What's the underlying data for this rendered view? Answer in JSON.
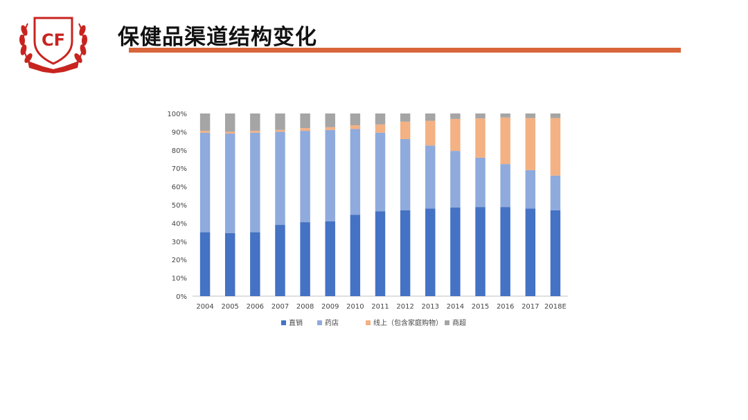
{
  "slide": {
    "title": "保健品渠道结构变化",
    "logo_text": "CF",
    "accent_color": "#d9653a",
    "logo_color": "#c8241f"
  },
  "chart_data": {
    "type": "bar",
    "stacked": true,
    "categories": [
      "2004",
      "2005",
      "2006",
      "2007",
      "2008",
      "2009",
      "2010",
      "2011",
      "2012",
      "2013",
      "2014",
      "2015",
      "2016",
      "2017",
      "2018E"
    ],
    "series": [
      {
        "name": "直销",
        "color": "#4472c4",
        "values": [
          35,
          34.5,
          35,
          39,
          40.5,
          41,
          44.5,
          46.5,
          47,
          48,
          48.5,
          48.8,
          48.8,
          48,
          47
        ]
      },
      {
        "name": "药店",
        "color": "#8faadc",
        "values": [
          54.5,
          54.5,
          54.5,
          51,
          50,
          50,
          47,
          43,
          39,
          34.5,
          31,
          27,
          23.5,
          21,
          19
        ]
      },
      {
        "name": "线上（包含家庭购物）",
        "color": "#f4b183",
        "values": [
          1,
          1,
          1,
          1,
          1.5,
          1.5,
          2,
          4.5,
          9.5,
          13.5,
          17.5,
          21.5,
          25.5,
          28.5,
          31.5
        ]
      },
      {
        "name": "商超",
        "color": "#a5a5a5",
        "values": [
          9.5,
          10,
          9.5,
          9,
          8,
          7.5,
          6.5,
          6,
          4.5,
          4,
          3,
          2.7,
          2.2,
          2.5,
          2.5
        ]
      }
    ],
    "y_ticks": [
      "0%",
      "10%",
      "20%",
      "30%",
      "40%",
      "50%",
      "60%",
      "70%",
      "80%",
      "90%",
      "100%"
    ],
    "ylim": [
      0,
      100
    ],
    "legend_position": "bottom",
    "grid": false
  }
}
